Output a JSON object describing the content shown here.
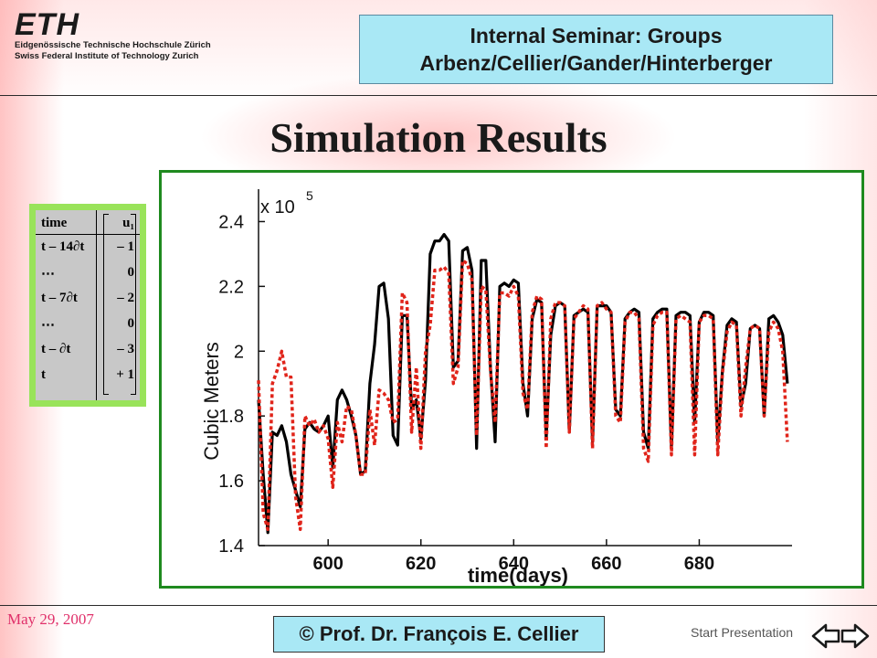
{
  "header": {
    "logo_mark": "ETH",
    "logo_line1": "Eidgenössische Technische Hochschule Zürich",
    "logo_line2": "Swiss Federal Institute of Technology Zurich",
    "seminar_line1": "Internal Seminar: Groups",
    "seminar_line2": "Arbenz/Cellier/Gander/Hinterberger"
  },
  "slide_title": "Simulation Results",
  "input_table": {
    "col_headers": [
      "time",
      "u₁"
    ],
    "rows": [
      {
        "time": "t – 14∂t",
        "u": "– 1"
      },
      {
        "time": "⋯",
        "u": "0"
      },
      {
        "time": "t – 7∂t",
        "u": "– 2"
      },
      {
        "time": "⋯",
        "u": "0"
      },
      {
        "time": "t – ∂t",
        "u": "– 3"
      },
      {
        "time": "t",
        "u": "+ 1"
      }
    ]
  },
  "chart_data": {
    "type": "line",
    "xlabel": "time(days)",
    "ylabel": "Cubic Meters",
    "multiplier": "x 10",
    "multiplier_exp": "5",
    "xlim": [
      585,
      700
    ],
    "ylim": [
      1.4,
      2.5
    ],
    "xticks": [
      600,
      620,
      640,
      660,
      680
    ],
    "yticks": [
      1.4,
      1.6,
      1.8,
      2,
      2.2,
      2.4
    ],
    "ytick_labels": [
      "1.4",
      "1.6",
      "1.8",
      "2",
      "2.2",
      "2.4"
    ],
    "series": [
      {
        "color": "#000000",
        "style": "solid",
        "x": [
          585,
          586,
          587,
          588,
          589,
          590,
          591,
          592,
          593,
          594,
          595,
          596,
          597,
          598,
          599,
          600,
          601,
          602,
          603,
          604,
          605,
          606,
          607,
          608,
          609,
          610,
          611,
          612,
          613,
          614,
          615,
          616,
          617,
          618,
          619,
          620,
          621,
          622,
          623,
          624,
          625,
          626,
          627,
          628,
          629,
          630,
          631,
          632,
          633,
          634,
          635,
          636,
          637,
          638,
          639,
          640,
          641,
          642,
          643,
          644,
          645,
          646,
          647,
          648,
          649,
          650,
          651,
          652,
          653,
          654,
          655,
          656,
          657,
          658,
          659,
          660,
          661,
          662,
          663,
          664,
          665,
          666,
          667,
          668,
          669,
          670,
          671,
          672,
          673,
          674,
          675,
          676,
          677,
          678,
          679,
          680,
          681,
          682,
          683,
          684,
          685,
          686,
          687,
          688,
          689,
          690,
          691,
          692,
          693,
          694,
          695,
          696,
          697,
          698,
          699
        ],
        "y": [
          1.85,
          1.62,
          1.44,
          1.75,
          1.74,
          1.77,
          1.72,
          1.62,
          1.57,
          1.52,
          1.76,
          1.78,
          1.76,
          1.75,
          1.77,
          1.8,
          1.64,
          1.85,
          1.88,
          1.85,
          1.8,
          1.74,
          1.62,
          1.63,
          1.9,
          2.02,
          2.2,
          2.21,
          2.1,
          1.74,
          1.71,
          2.11,
          2.11,
          1.82,
          1.85,
          1.73,
          1.91,
          2.3,
          2.34,
          2.34,
          2.36,
          2.34,
          1.95,
          1.97,
          2.31,
          2.32,
          2.25,
          1.7,
          2.28,
          2.28,
          1.95,
          1.72,
          2.2,
          2.21,
          2.2,
          2.22,
          2.21,
          1.9,
          1.8,
          2.1,
          2.16,
          2.15,
          1.73,
          2.05,
          2.14,
          2.15,
          2.14,
          1.75,
          2.11,
          2.12,
          2.13,
          2.12,
          1.72,
          2.14,
          2.14,
          2.14,
          2.12,
          1.82,
          1.8,
          2.1,
          2.12,
          2.13,
          2.12,
          1.75,
          1.7,
          2.1,
          2.12,
          2.13,
          2.13,
          1.7,
          2.11,
          2.12,
          2.12,
          2.11,
          1.78,
          2.09,
          2.12,
          2.12,
          2.11,
          1.72,
          1.94,
          2.08,
          2.1,
          2.09,
          1.83,
          1.9,
          2.07,
          2.08,
          2.07,
          1.8,
          2.1,
          2.11,
          2.09,
          2.05,
          1.9
        ]
      },
      {
        "color": "#e0241a",
        "style": "dotted",
        "x": [
          585,
          586,
          587,
          588,
          589,
          590,
          591,
          592,
          593,
          594,
          595,
          596,
          597,
          598,
          599,
          600,
          601,
          602,
          603,
          604,
          605,
          606,
          607,
          608,
          609,
          610,
          611,
          612,
          613,
          614,
          615,
          616,
          617,
          618,
          619,
          620,
          621,
          622,
          623,
          624,
          625,
          626,
          627,
          628,
          629,
          630,
          631,
          632,
          633,
          634,
          635,
          636,
          637,
          638,
          639,
          640,
          641,
          642,
          643,
          644,
          645,
          646,
          647,
          648,
          649,
          650,
          651,
          652,
          653,
          654,
          655,
          656,
          657,
          658,
          659,
          660,
          661,
          662,
          663,
          664,
          665,
          666,
          667,
          668,
          669,
          670,
          671,
          672,
          673,
          674,
          675,
          676,
          677,
          678,
          679,
          680,
          681,
          682,
          683,
          684,
          685,
          686,
          687,
          688,
          689,
          690,
          691,
          692,
          693,
          694,
          695,
          696,
          697,
          698,
          699
        ],
        "y": [
          1.91,
          1.5,
          1.45,
          1.9,
          1.94,
          2.0,
          1.92,
          1.92,
          1.55,
          1.45,
          1.8,
          1.77,
          1.79,
          1.75,
          1.77,
          1.73,
          1.58,
          1.78,
          1.72,
          1.83,
          1.82,
          1.74,
          1.62,
          1.62,
          1.82,
          1.71,
          1.88,
          1.87,
          1.85,
          1.78,
          1.79,
          2.18,
          2.15,
          1.75,
          1.95,
          1.7,
          2.0,
          2.08,
          2.25,
          2.25,
          2.26,
          2.24,
          1.9,
          1.95,
          2.28,
          2.27,
          2.22,
          1.74,
          2.2,
          2.19,
          1.94,
          1.78,
          2.18,
          2.18,
          2.17,
          2.2,
          2.17,
          1.87,
          1.82,
          2.12,
          2.17,
          2.16,
          1.7,
          2.1,
          2.15,
          2.15,
          2.14,
          1.75,
          2.1,
          2.12,
          2.14,
          2.13,
          1.7,
          2.14,
          2.15,
          2.13,
          2.12,
          1.8,
          1.78,
          2.09,
          2.12,
          2.12,
          2.1,
          1.7,
          1.66,
          2.08,
          2.11,
          2.12,
          2.12,
          1.68,
          2.1,
          2.11,
          2.1,
          2.09,
          1.68,
          2.09,
          2.11,
          2.11,
          2.1,
          1.68,
          1.93,
          2.06,
          2.09,
          2.08,
          1.8,
          1.95,
          2.07,
          2.08,
          2.07,
          1.8,
          2.06,
          2.09,
          2.07,
          2.0,
          1.72
        ]
      }
    ]
  },
  "footer": {
    "date": "May 29, 2007",
    "author": "©  Prof. Dr. François E. Cellier",
    "start_link": "Start Presentation"
  },
  "colors": {
    "header_box": "#a9e8f5",
    "chart_frame": "#1f8a1f",
    "table_border": "#99e35a",
    "date_text": "#e0306a",
    "series1": "#000000",
    "series2": "#e0241a"
  }
}
